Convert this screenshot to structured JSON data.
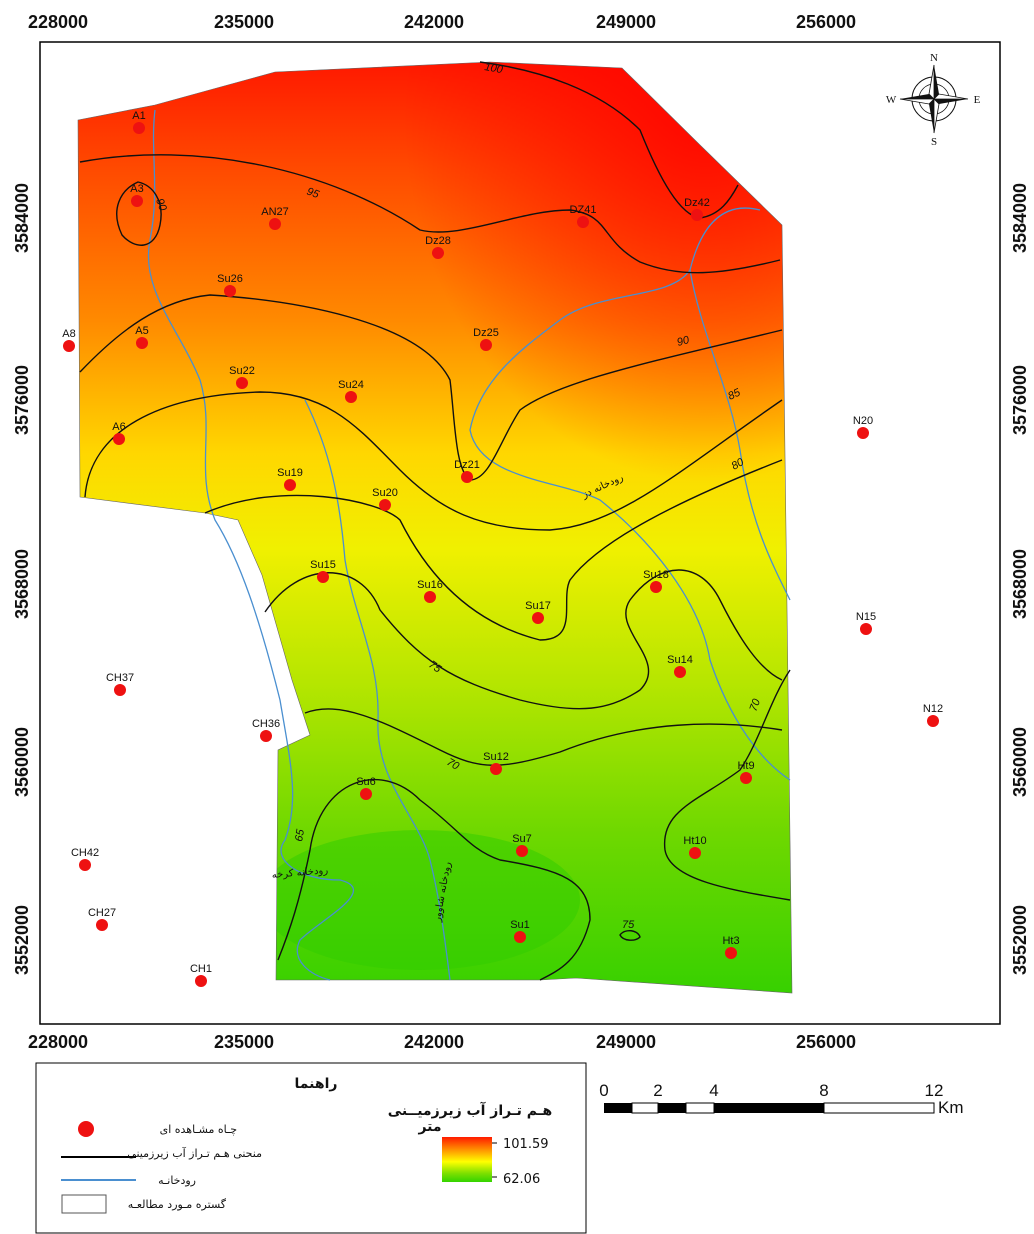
{
  "map": {
    "x_ticks": [
      "228000",
      "235000",
      "242000",
      "249000",
      "256000"
    ],
    "y_ticks": [
      "3584000",
      "3576000",
      "3568000",
      "3560000",
      "3552000"
    ],
    "compass": {
      "n": "N",
      "s": "S",
      "e": "E",
      "w": "W"
    },
    "rivers": {
      "karkheh": "رودخانه کرخه",
      "shavoor": "رودخانه شاوور",
      "dez": "رودخانه دز"
    }
  },
  "contours": [
    "100",
    "95",
    "90",
    "90",
    "85",
    "80",
    "75",
    "70",
    "70",
    "65",
    "75",
    "70"
  ],
  "wells": [
    {
      "id": "A1"
    },
    {
      "id": "A3"
    },
    {
      "id": "AN27"
    },
    {
      "id": "Dz28"
    },
    {
      "id": "DZ41"
    },
    {
      "id": "Dz42"
    },
    {
      "id": "Su26"
    },
    {
      "id": "A8"
    },
    {
      "id": "A5"
    },
    {
      "id": "Dz25"
    },
    {
      "id": "Su22"
    },
    {
      "id": "Su24"
    },
    {
      "id": "A6"
    },
    {
      "id": "N20"
    },
    {
      "id": "Dz21"
    },
    {
      "id": "Su19"
    },
    {
      "id": "Su20"
    },
    {
      "id": "Su15"
    },
    {
      "id": "Su16"
    },
    {
      "id": "Su18"
    },
    {
      "id": "Su17"
    },
    {
      "id": "N15"
    },
    {
      "id": "CH37"
    },
    {
      "id": "Su14"
    },
    {
      "id": "CH36"
    },
    {
      "id": "N12"
    },
    {
      "id": "Su12"
    },
    {
      "id": "Ht9"
    },
    {
      "id": "Su6"
    },
    {
      "id": "Su7"
    },
    {
      "id": "Ht10"
    },
    {
      "id": "CH42"
    },
    {
      "id": "CH27"
    },
    {
      "id": "Su1"
    },
    {
      "id": "Ht3"
    },
    {
      "id": "CH1"
    }
  ],
  "legend": {
    "title": "راهنما",
    "well": "چـاه مشـاهده ای",
    "contour": "منحنی هـم تـراز آب زیرزمینی",
    "river": "رودخانـه",
    "study_area": "گستره مـورد مطالعـه",
    "ramp_title_1": "هـم تـراز آب زیرزمیــنی",
    "ramp_title_2": "متر",
    "max": "101.59",
    "min": "62.06",
    "ramp_colors": [
      "#ff1a00",
      "#ff9900",
      "#ffff00",
      "#80e000",
      "#33d400"
    ]
  },
  "scale": {
    "labels": [
      "0",
      "2",
      "4",
      "8",
      "12"
    ],
    "unit": "Km"
  }
}
